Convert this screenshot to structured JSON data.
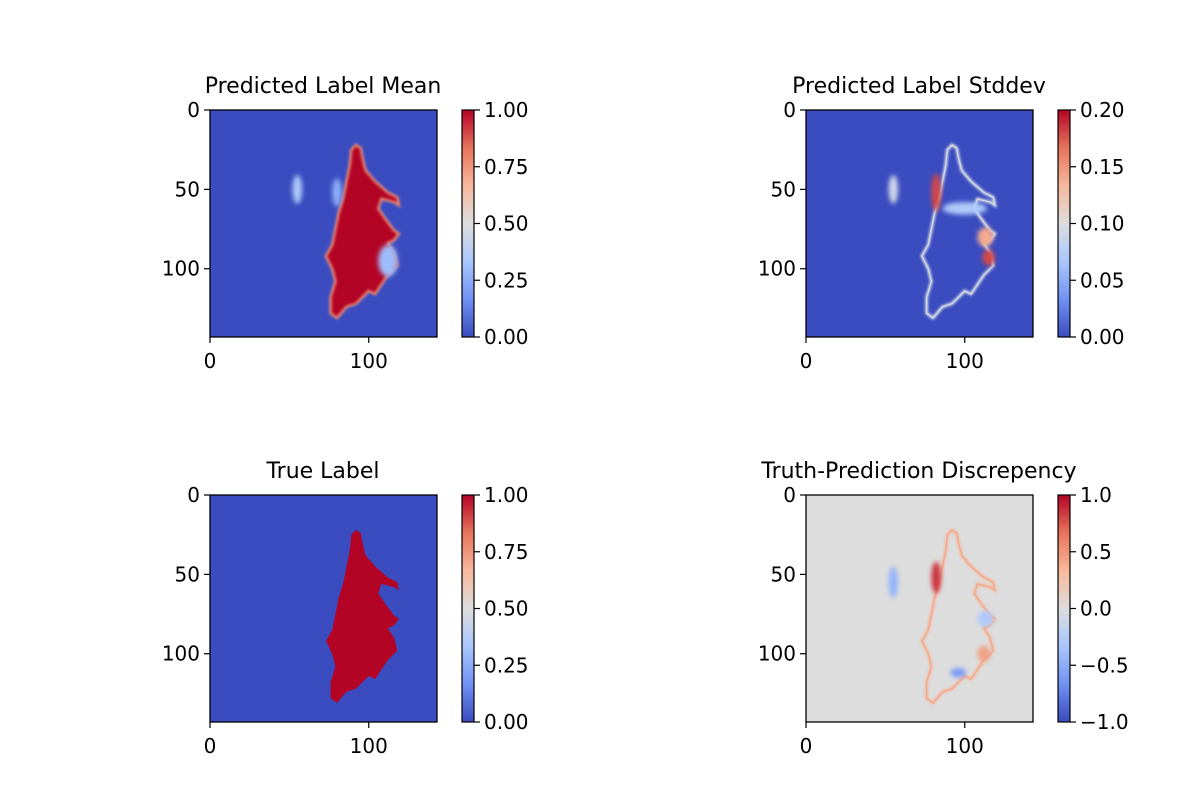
{
  "figure": {
    "background": "#ffffff",
    "colormap": "coolwarm",
    "colormap_stops": [
      "#3b4cc0",
      "#6f92f3",
      "#aac7fd",
      "#dddddd",
      "#f7b89c",
      "#e7745b",
      "#b40426"
    ]
  },
  "chart_data": [
    {
      "type": "heatmap",
      "title": "Predicted Label Mean",
      "image_shape": [
        144,
        144
      ],
      "xlim": [
        0,
        143
      ],
      "ylim": [
        143,
        0
      ],
      "xticks": [
        0,
        100
      ],
      "yticks": [
        0,
        50,
        100
      ],
      "xtick_labels": [
        "0",
        "100"
      ],
      "ytick_labels": [
        "0",
        "50",
        "100"
      ],
      "colorbar": {
        "min": 0.0,
        "max": 1.0,
        "ticks": [
          0.0,
          0.25,
          0.5,
          0.75,
          1.0
        ],
        "tick_labels": [
          "0.00",
          "0.25",
          "0.50",
          "0.75",
          "1.00"
        ]
      },
      "background_value": 0.0,
      "region_value": 1.0,
      "feature": "filled_region",
      "blobs": [
        {
          "x": 55,
          "y": 50,
          "rx": 3,
          "ry": 9,
          "value": 0.35
        },
        {
          "x": 80,
          "y": 52,
          "rx": 3,
          "ry": 9,
          "value": 0.25
        },
        {
          "x": 112,
          "y": 95,
          "rx": 6,
          "ry": 10,
          "value": 0.3
        }
      ]
    },
    {
      "type": "heatmap",
      "title": "Predicted Label Stddev",
      "image_shape": [
        144,
        144
      ],
      "xlim": [
        0,
        143
      ],
      "ylim": [
        143,
        0
      ],
      "xticks": [
        0,
        100
      ],
      "yticks": [
        0,
        50,
        100
      ],
      "xtick_labels": [
        "0",
        "100"
      ],
      "ytick_labels": [
        "0",
        "50",
        "100"
      ],
      "colorbar": {
        "min": 0.0,
        "max": 0.2,
        "ticks": [
          0.0,
          0.05,
          0.1,
          0.15,
          0.2
        ],
        "tick_labels": [
          "0.00",
          "0.05",
          "0.10",
          "0.15",
          "0.20"
        ]
      },
      "background_value": 0.0,
      "edge_value": 0.09,
      "feature": "outline",
      "blobs": [
        {
          "x": 55,
          "y": 50,
          "rx": 3,
          "ry": 9,
          "value": 0.09
        },
        {
          "x": 82,
          "y": 52,
          "rx": 3,
          "ry": 12,
          "value": 0.18
        },
        {
          "x": 113,
          "y": 80,
          "rx": 5,
          "ry": 6,
          "value": 0.14
        },
        {
          "x": 115,
          "y": 93,
          "rx": 4,
          "ry": 5,
          "value": 0.18
        },
        {
          "x": 100,
          "y": 62,
          "rx": 14,
          "ry": 4,
          "value": 0.07
        }
      ]
    },
    {
      "type": "heatmap",
      "title": "True Label",
      "image_shape": [
        144,
        144
      ],
      "xlim": [
        0,
        143
      ],
      "ylim": [
        143,
        0
      ],
      "xticks": [
        0,
        100
      ],
      "yticks": [
        0,
        50,
        100
      ],
      "xtick_labels": [
        "0",
        "100"
      ],
      "ytick_labels": [
        "0",
        "50",
        "100"
      ],
      "colorbar": {
        "min": 0.0,
        "max": 1.0,
        "ticks": [
          0.0,
          0.25,
          0.5,
          0.75,
          1.0
        ],
        "tick_labels": [
          "0.00",
          "0.25",
          "0.50",
          "0.75",
          "1.00"
        ]
      },
      "background_value": 0.0,
      "region_value": 1.0,
      "feature": "filled_region",
      "blobs": []
    },
    {
      "type": "heatmap",
      "title": "Truth-Prediction Discrepency",
      "image_shape": [
        144,
        144
      ],
      "xlim": [
        0,
        143
      ],
      "ylim": [
        143,
        0
      ],
      "xticks": [
        0,
        100
      ],
      "yticks": [
        0,
        50,
        100
      ],
      "xtick_labels": [
        "0",
        "100"
      ],
      "ytick_labels": [
        "0",
        "50",
        "100"
      ],
      "colorbar": {
        "min": -1.0,
        "max": 1.0,
        "ticks": [
          -1.0,
          -0.5,
          0.0,
          0.5,
          1.0
        ],
        "tick_labels": [
          "−1.0",
          "−0.5",
          "0.0",
          "0.5",
          "1.0"
        ]
      },
      "background_value": 0.0,
      "edge_value": 0.35,
      "feature": "outline",
      "blobs": [
        {
          "x": 55,
          "y": 55,
          "rx": 3,
          "ry": 10,
          "value": -0.45
        },
        {
          "x": 82,
          "y": 52,
          "rx": 3,
          "ry": 10,
          "value": 0.85
        },
        {
          "x": 113,
          "y": 78,
          "rx": 5,
          "ry": 5,
          "value": -0.3
        },
        {
          "x": 96,
          "y": 112,
          "rx": 5,
          "ry": 3,
          "value": -0.6
        },
        {
          "x": 112,
          "y": 100,
          "rx": 4,
          "ry": 5,
          "value": 0.45
        }
      ]
    }
  ],
  "region_outline": [
    [
      92,
      22
    ],
    [
      95,
      24
    ],
    [
      96,
      30
    ],
    [
      98,
      38
    ],
    [
      104,
      45
    ],
    [
      112,
      52
    ],
    [
      118,
      55
    ],
    [
      119,
      60
    ],
    [
      116,
      58
    ],
    [
      108,
      56
    ],
    [
      106,
      62
    ],
    [
      110,
      68
    ],
    [
      113,
      72
    ],
    [
      116,
      76
    ],
    [
      119,
      78
    ],
    [
      116,
      82
    ],
    [
      112,
      84
    ],
    [
      116,
      90
    ],
    [
      118,
      98
    ],
    [
      112,
      104
    ],
    [
      108,
      110
    ],
    [
      104,
      116
    ],
    [
      100,
      114
    ],
    [
      96,
      118
    ],
    [
      92,
      122
    ],
    [
      86,
      124
    ],
    [
      80,
      131
    ],
    [
      76,
      128
    ],
    [
      76,
      118
    ],
    [
      79,
      108
    ],
    [
      77,
      100
    ],
    [
      73,
      92
    ],
    [
      77,
      85
    ],
    [
      79,
      75
    ],
    [
      81,
      65
    ],
    [
      84,
      55
    ],
    [
      86,
      45
    ],
    [
      88,
      35
    ],
    [
      89,
      25
    ]
  ]
}
